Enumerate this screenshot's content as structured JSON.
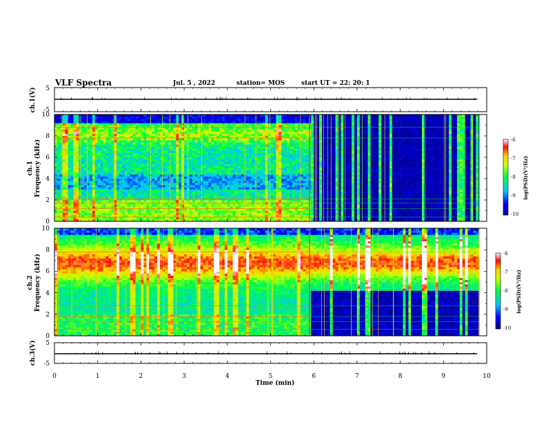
{
  "header": {
    "title": "VLF Spectra",
    "date": "Jul. 5 , 2022",
    "station": "station= MOS",
    "start": "start UT =   22: 20: 1"
  },
  "chart_data": [
    {
      "type": "line",
      "name": "ch1-waveform",
      "ylabel": "ch.1(V)",
      "ylim": [
        -5,
        5
      ],
      "yticks": [
        "5",
        "-5"
      ],
      "xlim": [
        0,
        10
      ],
      "level": 0
    },
    {
      "type": "heatmap",
      "name": "ch1-spectrogram",
      "ylabel": "ch.1",
      "ylabel2": "Frequency (kHz)",
      "ylim": [
        0,
        10
      ],
      "yticks": [
        "0",
        "2",
        "4",
        "6",
        "8",
        "10"
      ],
      "xlim": [
        0,
        10
      ],
      "transition_min": 5.9,
      "end_min": 9.83,
      "colorbar": {
        "label": "log(PSD)(V²/Hz)",
        "range": [
          -10,
          -6
        ],
        "ticks": [
          "-6",
          "-7",
          "-8",
          "-9",
          "-10"
        ]
      }
    },
    {
      "type": "heatmap",
      "name": "ch2-spectrogram",
      "ylabel": "ch.2",
      "ylabel2": "Frequency (kHz)",
      "ylim": [
        0,
        10
      ],
      "yticks": [
        "0",
        "2",
        "4",
        "6",
        "8",
        "10"
      ],
      "xlim": [
        0,
        10
      ],
      "transition_min": 5.9,
      "end_min": 9.83,
      "colorbar": {
        "label": "log(PSD)(V²/Hz)",
        "range": [
          -10,
          -6
        ],
        "ticks": [
          "-6",
          "-7",
          "-8",
          "-9",
          "-10"
        ]
      }
    },
    {
      "type": "line",
      "name": "ch3-waveform",
      "ylabel": "ch.3(V)",
      "ylim": [
        -5,
        5
      ],
      "yticks": [
        "5",
        "-5"
      ],
      "xlim": [
        0,
        10
      ],
      "level": 0,
      "xlabel": "Time (min)",
      "xticks": [
        "0",
        "1",
        "2",
        "3",
        "4",
        "5",
        "6",
        "7",
        "8",
        "9",
        "10"
      ]
    }
  ]
}
